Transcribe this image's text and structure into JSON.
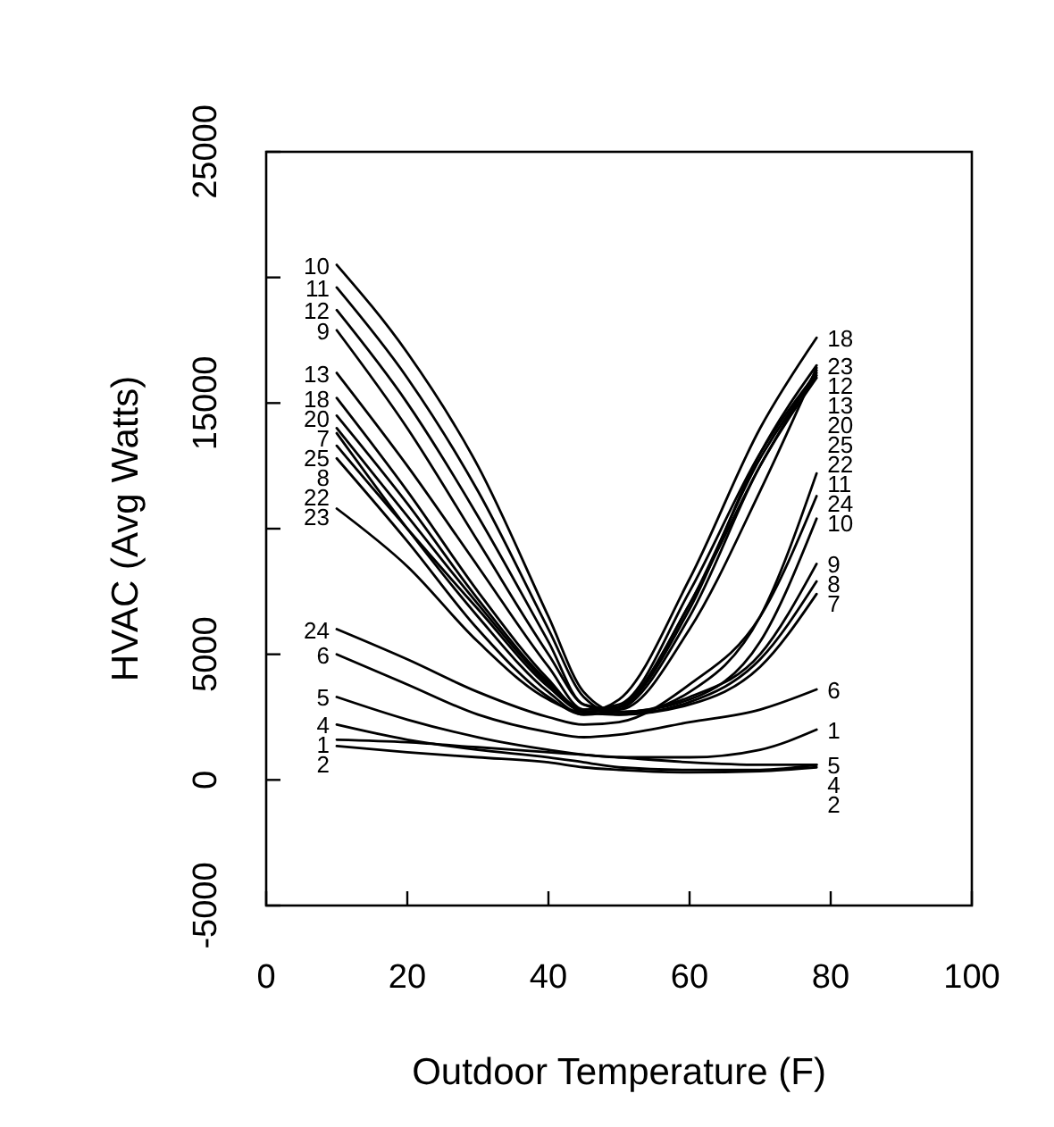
{
  "chart_data": {
    "type": "line",
    "xlabel": "Outdoor Temperature (F)",
    "ylabel": "HVAC (Avg Watts)",
    "x": [
      10,
      20,
      30,
      40,
      45,
      50,
      60,
      70,
      78
    ],
    "xlim": [
      0,
      100
    ],
    "xticks": [
      0,
      20,
      40,
      60,
      80,
      100
    ],
    "ylim": [
      -5000,
      25000
    ],
    "yticks": [
      -5000,
      0,
      5000,
      {
        "value": 10000,
        "label": null
      },
      15000,
      {
        "value": 20000,
        "label": null
      },
      25000
    ],
    "grid": false,
    "legend": false,
    "marker": "none",
    "line_style": "solid",
    "series": [
      {
        "name": "10",
        "color": "#000000",
        "values": [
          20500,
          17000,
          12500,
          6500,
          3500,
          2700,
          3200,
          5500,
          10400
        ]
      },
      {
        "name": "11",
        "color": "#000000",
        "values": [
          19600,
          16000,
          11500,
          6000,
          3300,
          2600,
          3500,
          6500,
          12200
        ]
      },
      {
        "name": "12",
        "color": "#000000",
        "values": [
          18700,
          15000,
          10500,
          5500,
          3000,
          2800,
          6000,
          11500,
          16400
        ]
      },
      {
        "name": "9",
        "color": "#000000",
        "values": [
          17900,
          14000,
          9500,
          5000,
          3000,
          2700,
          3300,
          5000,
          8600
        ]
      },
      {
        "name": "13",
        "color": "#000000",
        "values": [
          16200,
          12500,
          8500,
          4500,
          2800,
          2900,
          7000,
          12500,
          16300
        ]
      },
      {
        "name": "18",
        "color": "#000000",
        "values": [
          15200,
          11500,
          7500,
          4000,
          2700,
          3200,
          8000,
          14000,
          17600
        ]
      },
      {
        "name": "20",
        "color": "#000000",
        "values": [
          14500,
          11000,
          7200,
          3900,
          2800,
          3000,
          7500,
          13000,
          16200
        ]
      },
      {
        "name": "7",
        "color": "#000000",
        "values": [
          14000,
          10500,
          7000,
          3800,
          2700,
          2600,
          3000,
          4500,
          7400
        ]
      },
      {
        "name": "25",
        "color": "#000000",
        "values": [
          13800,
          10000,
          6500,
          3500,
          2600,
          2900,
          7000,
          12800,
          16100
        ]
      },
      {
        "name": "8",
        "color": "#000000",
        "values": [
          13300,
          10000,
          6800,
          3700,
          2700,
          2600,
          3100,
          4800,
          7900
        ]
      },
      {
        "name": "22",
        "color": "#000000",
        "values": [
          12800,
          9500,
          6000,
          3300,
          2600,
          2800,
          6500,
          12500,
          16000
        ]
      },
      {
        "name": "23",
        "color": "#000000",
        "values": [
          10800,
          8500,
          5500,
          3200,
          2700,
          2900,
          6800,
          13000,
          16500
        ]
      },
      {
        "name": "24",
        "color": "#000000",
        "values": [
          6000,
          4800,
          3500,
          2500,
          2200,
          2300,
          3800,
          6500,
          11300
        ]
      },
      {
        "name": "6",
        "color": "#000000",
        "values": [
          5000,
          3800,
          2600,
          1900,
          1700,
          1800,
          2300,
          2800,
          3600
        ]
      },
      {
        "name": "5",
        "color": "#000000",
        "values": [
          3300,
          2400,
          1700,
          1200,
          1000,
          900,
          700,
          600,
          600
        ]
      },
      {
        "name": "4",
        "color": "#000000",
        "values": [
          2200,
          1600,
          1200,
          900,
          700,
          500,
          400,
          400,
          600
        ]
      },
      {
        "name": "1",
        "color": "#000000",
        "values": [
          1600,
          1500,
          1300,
          1100,
          1000,
          900,
          900,
          1200,
          2000
        ]
      },
      {
        "name": "2",
        "color": "#000000",
        "values": [
          1350,
          1100,
          900,
          700,
          500,
          400,
          300,
          350,
          500
        ]
      }
    ]
  }
}
